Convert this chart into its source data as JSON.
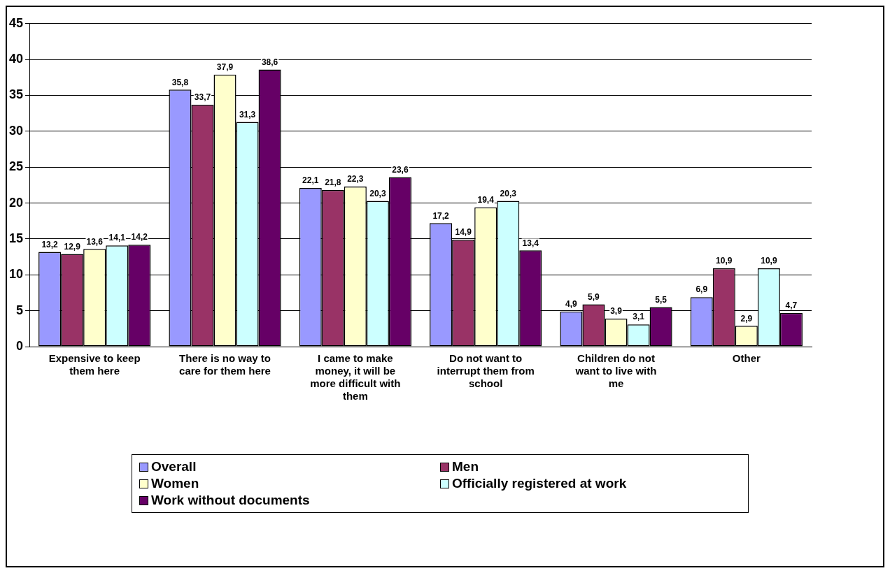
{
  "chart_data": {
    "type": "bar",
    "categories": [
      "Expensive to keep them here",
      "There is no way to care for them here",
      "I came to make money, it will be more difficult with them",
      "Do not want to interrupt them from school",
      "Children do not want to live with me",
      "Other"
    ],
    "series": [
      {
        "name": "Overall",
        "color": "#9999ff",
        "values": [
          13.2,
          35.8,
          22.1,
          17.2,
          4.9,
          6.9
        ],
        "value_labels": [
          "13,2",
          "35,8",
          "22,1",
          "17,2",
          "4,9",
          "6,9"
        ]
      },
      {
        "name": "Men",
        "color": "#993366",
        "values": [
          12.9,
          33.7,
          21.8,
          14.9,
          5.9,
          10.9
        ],
        "value_labels": [
          "12,9",
          "33,7",
          "21,8",
          "14,9",
          "5,9",
          "10,9"
        ]
      },
      {
        "name": "Women",
        "color": "#ffffcc",
        "values": [
          13.6,
          37.9,
          22.3,
          19.4,
          3.9,
          2.9
        ],
        "value_labels": [
          "13,6",
          "37,9",
          "22,3",
          "19,4",
          "3,9",
          "2,9"
        ]
      },
      {
        "name": "Officially registered at work",
        "color": "#ccffff",
        "values": [
          14.1,
          31.3,
          20.3,
          20.3,
          3.1,
          10.9
        ],
        "value_labels": [
          "14,1",
          "31,3",
          "20,3",
          "20,3",
          "3,1",
          "10,9"
        ]
      },
      {
        "name": "Work without documents",
        "color": "#660066",
        "values": [
          14.2,
          38.6,
          23.6,
          13.4,
          5.5,
          4.7
        ],
        "value_labels": [
          "14,2",
          "38,6",
          "23,6",
          "13,4",
          "5,5",
          "4,7"
        ]
      }
    ],
    "ylim": [
      0,
      45
    ],
    "yticks": [
      0,
      5,
      10,
      15,
      20,
      25,
      30,
      35,
      40,
      45
    ],
    "grid": "y",
    "legend": "bottom"
  }
}
